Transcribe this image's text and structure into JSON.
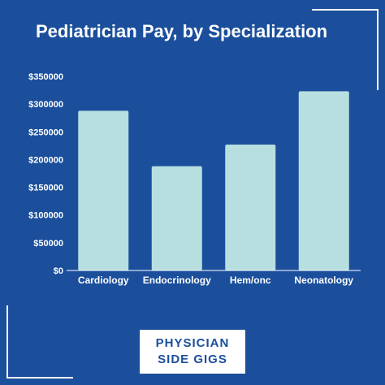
{
  "title": "Pediatrician Pay, by Specialization",
  "brand": {
    "line1": "PHYSICIAN",
    "line2": "SIDE GIGS"
  },
  "colors": {
    "background": "#1b4f9c",
    "bar": "#b7dfdf",
    "text": "#ffffff",
    "axis": "#ffffff"
  },
  "chart_data": {
    "type": "bar",
    "title": "Pediatrician Pay, by Specialization",
    "categories": [
      "Cardiology",
      "Endocrinology",
      "Hem/onc",
      "Neonatology"
    ],
    "values": [
      288000,
      188000,
      227000,
      323000
    ],
    "ylim": [
      0,
      350000
    ],
    "yticks": [
      0,
      50000,
      100000,
      150000,
      200000,
      250000,
      300000,
      350000
    ],
    "ytick_labels": [
      "$0",
      "$50000",
      "$100000",
      "$150000",
      "$200000",
      "$250000",
      "$300000",
      "$350000"
    ],
    "xlabel": "",
    "ylabel": "",
    "grid": false,
    "legend": "none"
  }
}
